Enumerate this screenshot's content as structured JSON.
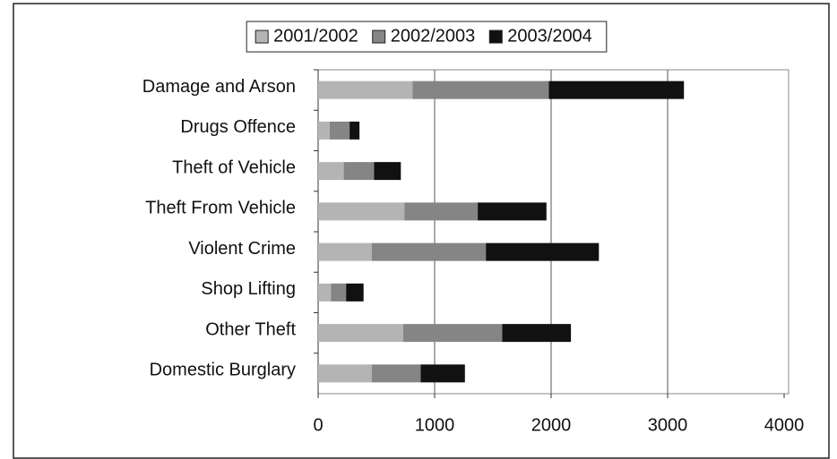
{
  "chart_data": {
    "type": "stacked-bar-horizontal",
    "categories": [
      "Damage and Arson",
      "Drugs Offence",
      "Theft of Vehicle",
      "Theft From Vehicle",
      "Violent Crime",
      "Shop Lifting",
      "Other Theft",
      "Domestic Burglary"
    ],
    "series": [
      {
        "name": "2001/2002",
        "color": "#b4b4b4",
        "values": [
          810,
          100,
          220,
          740,
          460,
          110,
          730,
          460
        ]
      },
      {
        "name": "2002/2003",
        "color": "#858585",
        "values": [
          1170,
          170,
          260,
          630,
          980,
          130,
          850,
          420
        ]
      },
      {
        "name": "2003/2004",
        "color": "#111111",
        "values": [
          1160,
          85,
          230,
          590,
          970,
          150,
          590,
          380
        ]
      }
    ],
    "xlim": [
      0,
      4000
    ],
    "xticks": [
      0,
      1000,
      2000,
      3000,
      4000
    ],
    "grid": true,
    "legend": "top"
  }
}
